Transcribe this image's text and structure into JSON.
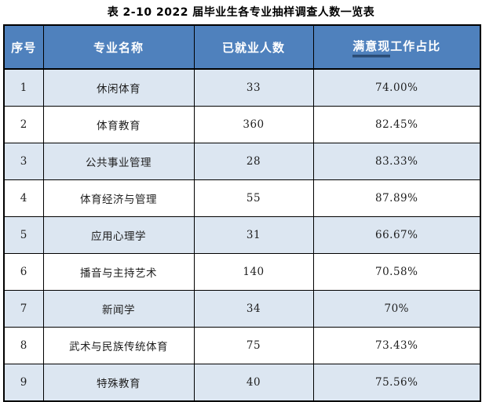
{
  "title": "表 2-10  2022 届毕业生各专业抽样调查人数一览表",
  "table": {
    "headers": [
      "序号",
      "专业名称",
      "已就业人数",
      "满意现工作占比"
    ],
    "satisfaction_header": {
      "underlined": "满意现",
      "rest": "工作占比"
    },
    "rows": [
      {
        "no": "1",
        "major": "休闲体育",
        "employed": "33",
        "satisfaction": "74.00%"
      },
      {
        "no": "2",
        "major": "体育教育",
        "employed": "360",
        "satisfaction": "82.45%"
      },
      {
        "no": "3",
        "major": "公共事业管理",
        "employed": "28",
        "satisfaction": "83.33%"
      },
      {
        "no": "4",
        "major": "体育经济与管理",
        "employed": "55",
        "satisfaction": "87.89%"
      },
      {
        "no": "5",
        "major": "应用心理学",
        "employed": "31",
        "satisfaction": "66.67%"
      },
      {
        "no": "6",
        "major": "播音与主持艺术",
        "employed": "140",
        "satisfaction": "70.58%"
      },
      {
        "no": "7",
        "major": "新闻学",
        "employed": "34",
        "satisfaction": "70%"
      },
      {
        "no": "8",
        "major": "武术与民族传统体育",
        "employed": "75",
        "satisfaction": "73.43%"
      },
      {
        "no": "9",
        "major": "特殊教育",
        "employed": "40",
        "satisfaction": "75.56%"
      }
    ],
    "colors": {
      "header_bg": "#4f81bd",
      "header_text": "#ffffff",
      "band_bg": "#dce6f1",
      "border": "#000000",
      "underline": "#0f243e"
    }
  },
  "chart_data": {
    "type": "table",
    "title": "表 2-10  2022 届毕业生各专业抽样调查人数一览表",
    "columns": [
      "序号",
      "专业名称",
      "已就业人数",
      "满意现工作占比"
    ],
    "rows": [
      [
        "1",
        "休闲体育",
        33,
        "74.00%"
      ],
      [
        "2",
        "体育教育",
        360,
        "82.45%"
      ],
      [
        "3",
        "公共事业管理",
        28,
        "83.33%"
      ],
      [
        "4",
        "体育经济与管理",
        55,
        "87.89%"
      ],
      [
        "5",
        "应用心理学",
        31,
        "66.67%"
      ],
      [
        "6",
        "播音与主持艺术",
        140,
        "70.58%"
      ],
      [
        "7",
        "新闻学",
        34,
        "70%"
      ],
      [
        "8",
        "武术与民族传统体育",
        75,
        "73.43%"
      ],
      [
        "9",
        "特殊教育",
        40,
        "75.56%"
      ]
    ]
  }
}
